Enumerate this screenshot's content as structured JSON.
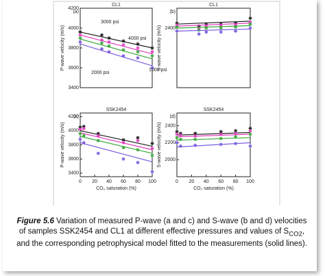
{
  "chart_data": [
    {
      "type": "scatter",
      "panel": "(a)",
      "title": "CL1",
      "y_label": "P-wave velocity (m/s)",
      "xlim": [
        0,
        100
      ],
      "ylim": [
        3400,
        4200
      ],
      "yticks": [
        3400,
        3600,
        3800,
        4000,
        4200
      ],
      "legend": "inside",
      "series": [
        {
          "name": "4000 psi",
          "color": "#222222",
          "x": [
            0,
            30,
            40,
            60,
            80,
            100
          ],
          "values": [
            3960,
            3930,
            3900,
            3870,
            3840,
            3800
          ],
          "fit_x": [
            0,
            100
          ],
          "fit_values": [
            3960,
            3800
          ]
        },
        {
          "name": "3000 psi",
          "color": "#e040c0",
          "x": [
            0,
            30,
            40,
            60,
            80,
            100
          ],
          "values": [
            3930,
            3880,
            3860,
            3830,
            3800,
            3760
          ],
          "fit_x": [
            0,
            100
          ],
          "fit_values": [
            3930,
            3740
          ]
        },
        {
          "name": "2000 psi",
          "color": "#3aa83a",
          "x": [
            0,
            30,
            40,
            60,
            80,
            100
          ],
          "values": [
            3900,
            3850,
            3820,
            3780,
            3760,
            3720
          ],
          "fit_x": [
            0,
            100
          ],
          "fit_values": [
            3890,
            3690
          ]
        },
        {
          "name": "1000 psi",
          "color": "#7a5ce0",
          "x": [
            0,
            30,
            40,
            60,
            80,
            100
          ],
          "values": [
            3860,
            3790,
            3760,
            3720,
            3700,
            3600
          ],
          "fit_x": [
            0,
            100
          ],
          "fit_values": [
            3840,
            3620
          ]
        }
      ]
    },
    {
      "type": "scatter",
      "panel": "(b)",
      "title": "CL1",
      "y_label": "S-wave velocity (m/s)",
      "xlim": [
        0,
        100
      ],
      "ylim": [
        1800,
        2600
      ],
      "yticks": [
        2400
      ],
      "series": [
        {
          "color": "#222222",
          "x": [
            0,
            30,
            40,
            60,
            80,
            100
          ],
          "values": [
            2450,
            2420,
            2440,
            2440,
            2450,
            2500
          ],
          "fit_x": [
            0,
            100
          ],
          "fit_values": [
            2440,
            2470
          ]
        },
        {
          "color": "#e040c0",
          "x": [
            0,
            30,
            40,
            60,
            80,
            100
          ],
          "values": [
            2430,
            2400,
            2420,
            2420,
            2430,
            2460
          ],
          "fit_x": [
            0,
            100
          ],
          "fit_values": [
            2420,
            2450
          ]
        },
        {
          "color": "#3aa83a",
          "x": [
            0,
            30,
            40,
            60,
            80,
            100
          ],
          "values": [
            2410,
            2380,
            2400,
            2400,
            2410,
            2440
          ],
          "fit_x": [
            0,
            100
          ],
          "fit_values": [
            2400,
            2425
          ]
        },
        {
          "color": "#7a5ce0",
          "x": [
            0,
            30,
            40,
            60,
            80,
            100
          ],
          "values": [
            2370,
            2340,
            2360,
            2360,
            2370,
            2400
          ],
          "fit_x": [
            0,
            100
          ],
          "fit_values": [
            2370,
            2390
          ]
        }
      ]
    },
    {
      "type": "scatter",
      "panel": "(c)",
      "title": "SSK2454",
      "y_label": "P-wave velocity (m/s)",
      "x_label": "CO₂ saturation (%)",
      "xlim": [
        0,
        100
      ],
      "xticks": [
        0,
        20,
        40,
        60,
        80,
        100
      ],
      "ylim": [
        3350,
        4250
      ],
      "yticks": [
        3400,
        3600,
        3800,
        4000,
        4200
      ],
      "series": [
        {
          "color": "#222222",
          "x": [
            0,
            5,
            25,
            60,
            80,
            100
          ],
          "values": [
            4050,
            4060,
            3960,
            3870,
            3900,
            3820
          ],
          "fit_x": [
            0,
            100
          ],
          "fit_values": [
            4000,
            3780
          ]
        },
        {
          "color": "#e040c0",
          "x": [
            0,
            5,
            25,
            60,
            80,
            100
          ],
          "values": [
            4020,
            4030,
            3930,
            3830,
            3860,
            3750
          ],
          "fit_x": [
            0,
            100
          ],
          "fit_values": [
            3970,
            3730
          ]
        },
        {
          "color": "#3aa83a",
          "x": [
            0,
            5,
            25,
            60,
            80,
            100
          ],
          "values": [
            3960,
            3930,
            3860,
            3760,
            3730,
            3650
          ],
          "fit_x": [
            0,
            100
          ],
          "fit_values": [
            3920,
            3680
          ]
        },
        {
          "color": "#7a5ce0",
          "x": [
            0,
            5,
            25,
            60,
            80,
            100
          ],
          "values": [
            3880,
            3830,
            3680,
            3600,
            3550,
            3420
          ],
          "fit_x": [
            0,
            100
          ],
          "fit_values": [
            3830,
            3560
          ]
        }
      ]
    },
    {
      "type": "scatter",
      "panel": "(d)",
      "title": "SSK2454",
      "y_label": "S-wave velocity (m/s)",
      "x_label": "CO₂ saturation (%)",
      "xlim": [
        0,
        100
      ],
      "xticks": [
        0,
        20,
        40,
        60,
        80,
        100
      ],
      "ylim": [
        1800,
        2550
      ],
      "yticks": [
        2000,
        2200,
        2400
      ],
      "series": [
        {
          "color": "#222222",
          "x": [
            0,
            5,
            25,
            60,
            80,
            100
          ],
          "values": [
            2330,
            2310,
            2310,
            2330,
            2340,
            2370
          ],
          "fit_x": [
            0,
            100
          ],
          "fit_values": [
            2290,
            2320
          ]
        },
        {
          "color": "#e040c0",
          "x": [
            0,
            5,
            25,
            60,
            80,
            100
          ],
          "values": [
            2300,
            2290,
            2280,
            2300,
            2310,
            2340
          ],
          "fit_x": [
            0,
            100
          ],
          "fit_values": [
            2270,
            2300
          ]
        },
        {
          "color": "#3aa83a",
          "x": [
            0,
            5,
            25,
            60,
            80,
            100
          ],
          "values": [
            2260,
            2240,
            2240,
            2250,
            2270,
            2300
          ],
          "fit_x": [
            0,
            100
          ],
          "fit_values": [
            2230,
            2260
          ]
        },
        {
          "color": "#7a5ce0",
          "x": [
            0,
            5,
            25,
            60,
            80,
            100
          ],
          "values": [
            2200,
            2160,
            2170,
            2180,
            2190,
            2160
          ],
          "fit_x": [
            0,
            100
          ],
          "fit_values": [
            2150,
            2200
          ]
        }
      ]
    }
  ],
  "caption": {
    "label": "Figure 5.6",
    "text_before_sub": "Variation of measured P-wave (a and c) and S-wave (b and d) velocities of samples SSK2454 and CL1 at different effective pressures and values of S",
    "sub": "CO2",
    "text_after_sub": ", and the corresponding petrophysical model fitted to the measurements (solid lines)."
  }
}
